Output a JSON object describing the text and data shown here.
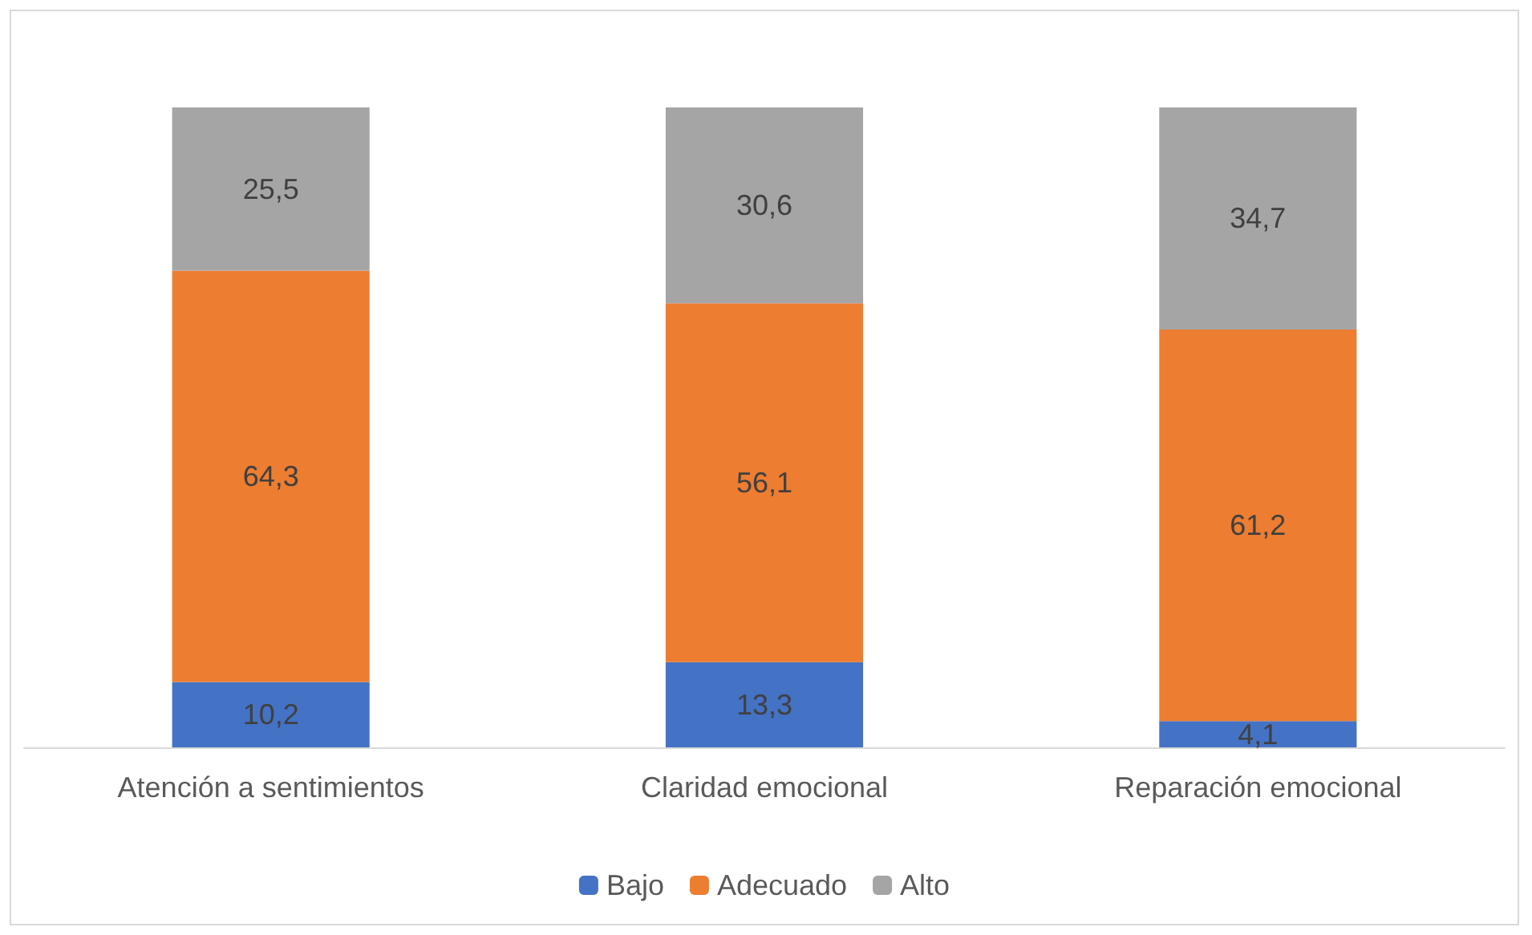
{
  "chart_data": {
    "type": "bar",
    "stacked": true,
    "categories": [
      "Atención a sentimientos",
      "Claridad emocional",
      "Reparación emocional"
    ],
    "series": [
      {
        "name": "Bajo",
        "color": "#4472c4",
        "values": [
          10.2,
          13.3,
          4.1
        ],
        "value_labels": [
          "10,2",
          "13,3",
          "4,1"
        ]
      },
      {
        "name": "Adecuado",
        "color": "#ed7d31",
        "values": [
          64.3,
          56.1,
          61.2
        ],
        "value_labels": [
          "64,3",
          "56,1",
          "61,2"
        ]
      },
      {
        "name": "Alto",
        "color": "#a5a5a5",
        "values": [
          25.5,
          30.6,
          34.7
        ],
        "value_labels": [
          "25,5",
          "30,6",
          "34,7"
        ]
      }
    ],
    "legend": "bottom",
    "grid": false
  }
}
